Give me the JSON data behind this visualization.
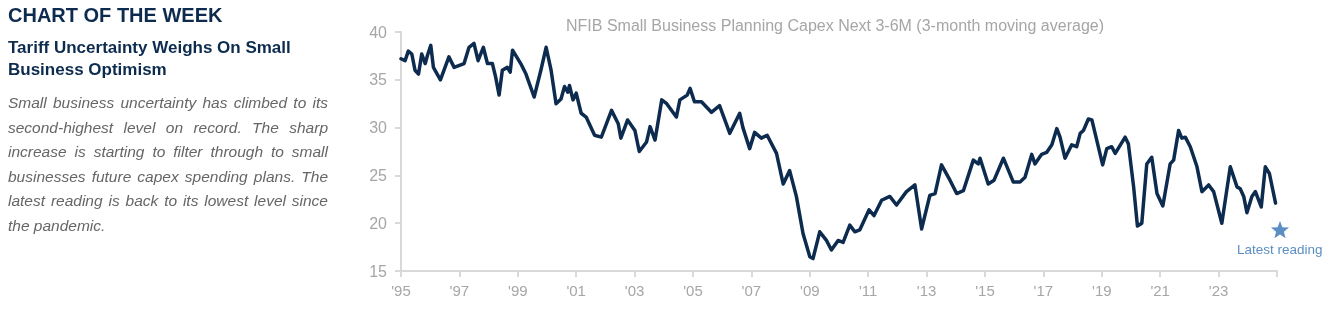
{
  "chart_data": {
    "type": "line",
    "title": "NFIB Small Business Planning Capex Next 3-6M (3-month moving average)",
    "annotations": [
      "CHART OF THE WEEK",
      "Tariff Uncertainty Weighs On Small Business Optimism",
      "Small business uncertainty has climbed to its second-highest level on record. The sharp increase is starting to filter through to small businesses future capex spending plans. The latest reading is back to its lowest level since the pandemic.",
      {
        "text": "Latest reading",
        "x": 2025.1,
        "y": 19.3
      }
    ],
    "series": [
      {
        "color": "#0d2b4e",
        "x": [
          1995.0,
          1995.14,
          1995.25,
          1995.37,
          1995.48,
          1995.6,
          1995.71,
          1995.83,
          1995.91,
          1996.02,
          1996.11,
          1996.35,
          1996.64,
          1996.82,
          1997.16,
          1997.33,
          1997.5,
          1997.64,
          1997.82,
          1997.96,
          1998.13,
          1998.24,
          1998.36,
          1998.47,
          1998.64,
          1998.74,
          1998.82,
          1999.1,
          1999.28,
          1999.56,
          1999.79,
          1999.97,
          2000.14,
          2000.31,
          2000.48,
          2000.6,
          2000.71,
          2000.77,
          2000.89,
          2001.0,
          2001.17,
          2001.34,
          2001.63,
          2001.86,
          2002.21,
          2002.44,
          2002.53,
          2002.76,
          2003.01,
          2003.16,
          2003.41,
          2003.53,
          2003.7,
          2003.93,
          2004.1,
          2004.43,
          2004.55,
          2004.8,
          2004.9,
          2005.05,
          2005.29,
          2005.63,
          2005.91,
          2006.09,
          2006.26,
          2006.6,
          2006.71,
          2006.94,
          2007.11,
          2007.34,
          2007.54,
          2007.86,
          2008.09,
          2008.31,
          2008.54,
          2008.77,
          2009.0,
          2009.11,
          2009.34,
          2009.57,
          2009.74,
          2009.97,
          2010.14,
          2010.37,
          2010.54,
          2010.71,
          2011.03,
          2011.2,
          2011.46,
          2011.74,
          2011.97,
          2012.31,
          2012.6,
          2012.83,
          2013.11,
          2013.29,
          2013.51,
          2013.8,
          2014.03,
          2014.26,
          2014.6,
          2014.77,
          2014.83,
          2015.11,
          2015.31,
          2015.63,
          2015.97,
          2016.2,
          2016.37,
          2016.6,
          2016.71,
          2016.94,
          2017.11,
          2017.29,
          2017.46,
          2017.57,
          2017.74,
          2017.97,
          2018.14,
          2018.26,
          2018.37,
          2018.54,
          2018.66,
          2019.03,
          2019.17,
          2019.34,
          2019.46,
          2019.8,
          2019.91,
          2020.09,
          2020.22,
          2020.37,
          2020.54,
          2020.71,
          2020.89,
          2021.09,
          2021.34,
          2021.46,
          2021.63,
          2021.74,
          2021.86,
          2022.03,
          2022.26,
          2022.43,
          2022.66,
          2022.83,
          2023.11,
          2023.4,
          2023.63,
          2023.74,
          2023.86,
          2023.97,
          2024.14,
          2024.26,
          2024.46,
          2024.6,
          2024.74,
          2024.95
        ],
        "values": [
          37.2,
          37.0,
          38.0,
          37.7,
          36.0,
          35.6,
          37.7,
          36.7,
          37.6,
          38.6,
          36.3,
          35.0,
          37.4,
          36.3,
          36.7,
          38.4,
          38.8,
          37.0,
          38.4,
          36.7,
          36.7,
          35.3,
          33.4,
          36.0,
          36.3,
          35.8,
          38.1,
          36.7,
          35.6,
          33.2,
          36.0,
          38.4,
          36.0,
          32.5,
          33.0,
          34.3,
          33.7,
          34.4,
          32.9,
          33.6,
          31.5,
          31.1,
          29.2,
          29.0,
          31.8,
          30.4,
          28.9,
          30.8,
          29.7,
          27.5,
          28.5,
          30.1,
          28.7,
          32.9,
          32.5,
          31.1,
          32.9,
          33.4,
          34.1,
          32.7,
          32.7,
          31.6,
          32.3,
          30.8,
          29.4,
          31.5,
          30.0,
          27.8,
          29.5,
          28.9,
          29.2,
          27.3,
          24.1,
          25.5,
          22.8,
          18.9,
          16.5,
          16.3,
          19.1,
          18.2,
          17.2,
          18.2,
          18.0,
          19.8,
          19.1,
          19.3,
          21.4,
          20.8,
          22.4,
          22.8,
          21.9,
          23.3,
          24.0,
          19.4,
          22.9,
          23.1,
          26.1,
          24.5,
          23.1,
          23.4,
          26.6,
          26.2,
          26.8,
          24.1,
          24.5,
          26.8,
          24.3,
          24.3,
          24.8,
          27.2,
          26.2,
          27.2,
          27.4,
          28.2,
          29.9,
          29.0,
          26.8,
          28.2,
          28.0,
          29.4,
          29.7,
          30.9,
          30.8,
          26.1,
          27.8,
          28.0,
          27.3,
          29.0,
          28.3,
          23.8,
          19.7,
          20.0,
          26.2,
          26.9,
          23.1,
          21.8,
          26.2,
          26.6,
          29.7,
          28.9,
          29.0,
          28.0,
          25.9,
          23.3,
          24.0,
          23.3,
          20.0,
          25.9,
          23.8,
          23.6,
          22.8,
          21.1,
          22.8,
          23.3,
          21.7,
          25.9,
          25.2,
          22.1
        ]
      }
    ],
    "xlim": [
      1995,
      2025
    ],
    "xticks": [
      {
        "value": 1995,
        "label": "'95"
      },
      {
        "value": 1997,
        "label": "'97"
      },
      {
        "value": 1999,
        "label": "'99"
      },
      {
        "value": 2001,
        "label": "'01"
      },
      {
        "value": 2003,
        "label": "'03"
      },
      {
        "value": 2005,
        "label": "'05"
      },
      {
        "value": 2007,
        "label": "'07"
      },
      {
        "value": 2009,
        "label": "'09"
      },
      {
        "value": 2011,
        "label": "'11"
      },
      {
        "value": 2013,
        "label": "'13"
      },
      {
        "value": 2015,
        "label": "'15"
      },
      {
        "value": 2017,
        "label": "'17"
      },
      {
        "value": 2019,
        "label": "'19"
      },
      {
        "value": 2021,
        "label": "'21"
      },
      {
        "value": 2023,
        "label": "'23"
      },
      {
        "value": 2025,
        "label": null
      }
    ],
    "ylim": [
      15,
      40
    ],
    "yticks": [
      15,
      20,
      25,
      30,
      35,
      40
    ],
    "grid": false,
    "marker": "none",
    "line_style": "solid"
  }
}
